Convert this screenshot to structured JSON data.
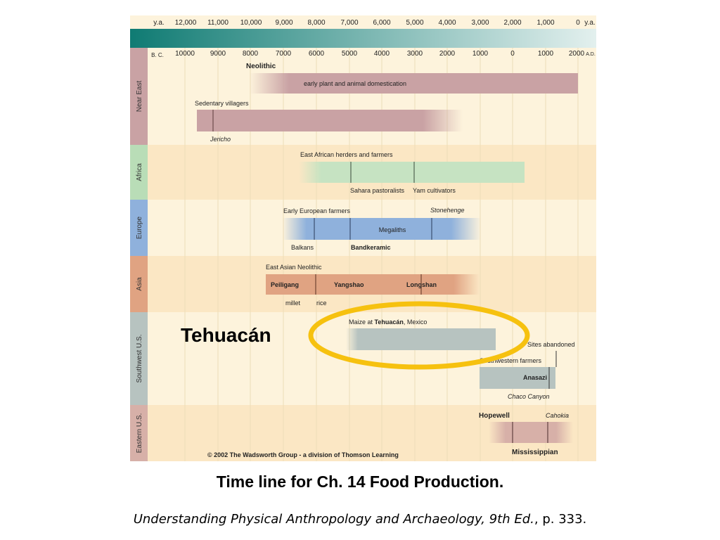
{
  "colors": {
    "panel_bg_a": "#fdf3dc",
    "panel_bg_b": "#fbe7c4",
    "header_teal_dark": "#0f7b73",
    "header_teal_light": "#e3f0ee",
    "near_east_tab": "#c9a2a4",
    "africa_tab": "#b9ddb7",
    "europe_tab": "#8fb1dc",
    "asia_tab": "#e0a382",
    "southwest_tab": "#b7c3c0",
    "eastern_tab": "#d7b0a8",
    "highlight_ring": "#f6c10f"
  },
  "scales": {
    "ya_label": "y.a.",
    "ya_ticks": [
      "12,000",
      "11,000",
      "10,000",
      "9,000",
      "8,000",
      "7,000",
      "6,000",
      "5,000",
      "4,000",
      "3,000",
      "2,000",
      "1,000",
      "0"
    ],
    "ya_end_label": "y.a.",
    "bc_label": "B. C.",
    "bc_ticks": [
      "10000",
      "9000",
      "8000",
      "7000",
      "6000",
      "5000",
      "4000",
      "3000",
      "2000",
      "1000",
      "0",
      "1000",
      "2000"
    ],
    "ad_label": "A.D."
  },
  "regions": [
    {
      "id": "near-east",
      "label": "Near East"
    },
    {
      "id": "africa",
      "label": "Africa"
    },
    {
      "id": "europe",
      "label": "Europe"
    },
    {
      "id": "asia",
      "label": "Asia"
    },
    {
      "id": "southwest",
      "label": "Southwest U.S."
    },
    {
      "id": "eastern",
      "label": "Eastern U.S."
    }
  ],
  "labels": {
    "neolithic": "Neolithic",
    "domestication": "early plant and animal domestication",
    "sedentary": "Sedentary villagers",
    "jericho": "Jericho",
    "east_african": "East African herders and farmers",
    "sahara": "Sahara pastoralists",
    "yam": "Yam cultivators",
    "early_european": "Early European farmers",
    "stonehenge": "Stonehenge",
    "megaliths": "Megaliths",
    "balkans": "Balkans",
    "bandkeramic": "Bandkeramic",
    "east_asian": "East Asian Neolithic",
    "peiligang": "Peiligang",
    "yangshao": "Yangshao",
    "longshan": "Longshan",
    "millet": "millet",
    "rice": "rice",
    "maize_prefix": "Maize at ",
    "maize_place": "Tehuacán",
    "maize_suffix": ", Mexico",
    "sites_abandoned": "Sites abandoned",
    "southwestern_farmers": "Southwestern farmers",
    "anasazi": "Anasazi",
    "chaco": "Chaco Canyon",
    "hopewell": "Hopewell",
    "cahokia": "Cahokia",
    "mississippian": "Mississippian",
    "copyright": "© 2002 The Wadsworth Group - a division of Thomson Learning"
  },
  "callout": "Tehuacán",
  "caption": {
    "title": "Time line for Ch. 14  Food Production.",
    "source_italic": "Understanding Physical Anthropology and Archaeology, 9th Ed.",
    "source_rest": ", p. 333."
  }
}
